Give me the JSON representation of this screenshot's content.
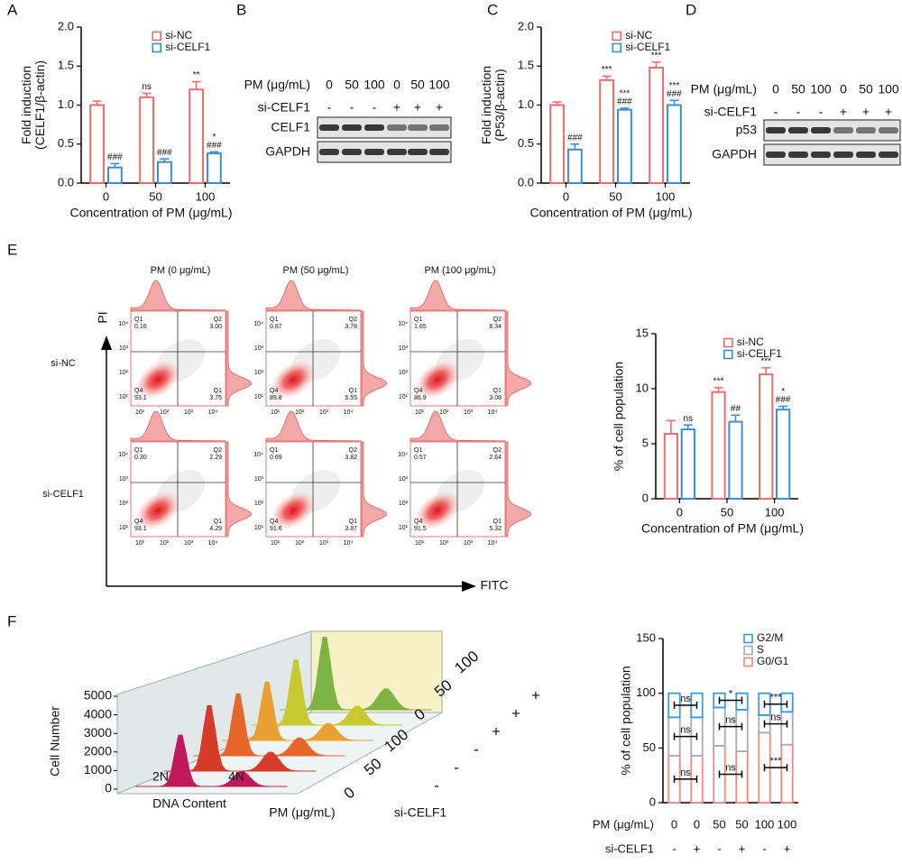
{
  "panel_labels": [
    "A",
    "B",
    "C",
    "D",
    "E",
    "F"
  ],
  "chart_data": [
    {
      "type": "bar",
      "ylabel": [
        "Fold induction",
        "(CELF1/β-actin)"
      ],
      "xlabel": "Concentration of PM (μg/mL)",
      "categories": [
        "0",
        "50",
        "100"
      ],
      "ylim": [
        0,
        2
      ],
      "yticks": [
        {
          "value": 0,
          "label": "0.0"
        },
        {
          "value": 0.5,
          "label": "0.5"
        },
        {
          "value": 1,
          "label": "1.0"
        },
        {
          "value": 1.5,
          "label": "1.5"
        },
        {
          "value": 2,
          "label": "2.0"
        }
      ],
      "series": [
        {
          "name": "si-NC",
          "color": "#ef6c6c",
          "values": [
            1.0,
            1.1,
            1.2
          ],
          "errors": [
            0.05,
            0.05,
            0.1
          ],
          "annotations": [
            null,
            [
              "ns"
            ],
            [
              "**"
            ]
          ]
        },
        {
          "name": "si-CELF1",
          "color": "#3b8fd6",
          "values": [
            0.2,
            0.27,
            0.38
          ],
          "errors": [
            0.05,
            0.04,
            0.02
          ],
          "annotations": [
            [
              "###"
            ],
            [
              "###"
            ],
            [
              "*",
              "###"
            ]
          ]
        }
      ]
    },
    {
      "type": "bar",
      "ylabel": [
        "Fold induction",
        "(P53/β-actin)"
      ],
      "xlabel": "Concentration of PM (μg/mL)",
      "categories": [
        "0",
        "50",
        "100"
      ],
      "ylim": [
        0,
        2
      ],
      "yticks": [
        {
          "value": 0,
          "label": "0.0"
        },
        {
          "value": 0.5,
          "label": "0.5"
        },
        {
          "value": 1,
          "label": "1.0"
        },
        {
          "value": 1.5,
          "label": "1.5"
        },
        {
          "value": 2,
          "label": "2.0"
        }
      ],
      "series": [
        {
          "name": "si-NC",
          "color": "#ef6c6c",
          "values": [
            1.0,
            1.32,
            1.48
          ],
          "errors": [
            0.04,
            0.05,
            0.07
          ],
          "annotations": [
            null,
            [
              "***"
            ],
            [
              "***"
            ]
          ]
        },
        {
          "name": "si-CELF1",
          "color": "#3b8fd6",
          "values": [
            0.43,
            0.94,
            1.0
          ],
          "errors": [
            0.07,
            0.02,
            0.06
          ],
          "annotations": [
            [
              "###"
            ],
            [
              "***",
              "###"
            ],
            [
              "***",
              "###"
            ]
          ]
        }
      ]
    },
    {
      "type": "bar",
      "ylabel": [
        "% of cell population"
      ],
      "xlabel": "Concentration of PM (μg/mL)",
      "categories": [
        "0",
        "50",
        "100"
      ],
      "ylim": [
        0,
        15
      ],
      "yticks": [
        0,
        5,
        10,
        15
      ],
      "series": [
        {
          "name": "si-NC",
          "color": "#ef6c6c",
          "values": [
            5.9,
            9.7,
            11.3
          ],
          "errors": [
            1.2,
            0.4,
            0.6
          ],
          "annotations": [
            null,
            [
              "***"
            ],
            [
              "***"
            ]
          ]
        },
        {
          "name": "si-CELF1",
          "color": "#3b8fd6",
          "values": [
            6.3,
            7.0,
            8.1
          ],
          "errors": [
            0.4,
            0.6,
            0.3
          ],
          "annotations": [
            [
              "ns"
            ],
            [
              "##"
            ],
            [
              "*",
              "###"
            ]
          ]
        }
      ]
    },
    {
      "type": "stacked_bar",
      "ylabel": [
        "% of cell population"
      ],
      "ylim": [
        0,
        150
      ],
      "yticks": [
        0,
        50,
        100,
        150
      ],
      "row_labels": [
        "PM (μg/mL)",
        "si-CELF1"
      ],
      "categories": [
        "0",
        "0",
        "50",
        "50",
        "100",
        "100"
      ],
      "si_celf1": [
        "-",
        "+",
        "-",
        "+",
        "-",
        "+"
      ],
      "series": [
        {
          "name": "G0/G1",
          "color": "#ef8a80",
          "values": [
            43,
            43,
            52,
            47,
            64,
            53
          ],
          "pair_annotations": [
            "ns",
            "ns",
            "***"
          ]
        },
        {
          "name": "S",
          "color": "#a9a9b8",
          "values": [
            35,
            35,
            35,
            38,
            16,
            30
          ],
          "pair_annotations": [
            "ns",
            "ns",
            "ns"
          ]
        },
        {
          "name": "G2/M",
          "color": "#3a9ad9",
          "values": [
            22,
            22,
            13,
            15,
            20,
            17
          ],
          "pair_annotations": [
            "ns",
            "*",
            "***"
          ]
        }
      ]
    },
    {
      "type": "ridge3d",
      "ylabel": "Cell Number",
      "ylim": [
        0,
        5000
      ],
      "yticks": [
        0,
        1000,
        2000,
        3000,
        4000,
        5000
      ],
      "xlabel": "DNA Content",
      "x_categories": [
        "2N",
        "4N"
      ],
      "depth_labels": [
        "PM (μg/mL)",
        "si-CELF1"
      ],
      "pm": [
        "0",
        "50",
        "100",
        "0",
        "50",
        "100"
      ],
      "si_celf1": [
        "-",
        "-",
        "-",
        "+",
        "+",
        "+"
      ],
      "peaks": [
        2900,
        3700,
        3500,
        3300,
        3700,
        4100
      ],
      "colors": [
        "#c2185b",
        "#d83a2a",
        "#e8652a",
        "#e8a030",
        "#c8c830",
        "#7cb342"
      ]
    }
  ],
  "blots": [
    {
      "row_labels": [
        "PM (μg/mL)",
        "si-CELF1"
      ],
      "pm": [
        "0",
        "50",
        "100",
        "0",
        "50",
        "100"
      ],
      "si_celf1": [
        "-",
        "-",
        "-",
        "+",
        "+",
        "+"
      ],
      "proteins": [
        "CELF1",
        "GAPDH"
      ]
    },
    {
      "row_labels": [
        "PM (μg/mL)",
        "si-CELF1"
      ],
      "pm": [
        "0",
        "50",
        "100",
        "0",
        "50",
        "100"
      ],
      "si_celf1": [
        "-",
        "-",
        "-",
        "+",
        "+",
        "+"
      ],
      "proteins": [
        "p53",
        "GAPDH"
      ]
    }
  ],
  "flow": {
    "titles": [
      "PM (0 μg/mL)",
      "PM (50 μg/mL)",
      "PM (100 μg/mL)"
    ],
    "rows": [
      "si-NC",
      "si-CELF1"
    ],
    "y_axis": "PI",
    "x_axis": "FITC",
    "axis_ticks": [
      "10¹",
      "10²",
      "10³",
      "10⁴"
    ],
    "quadrant_names": [
      "Q1",
      "Q2",
      "Q4",
      "Q1"
    ],
    "plots": [
      [
        [
          "0.16",
          "3.00",
          "93.1",
          "3.75"
        ],
        [
          "0.87",
          "3.78",
          "89.8",
          "5.55"
        ],
        [
          "1.65",
          "8.34",
          "86.9",
          "3.08"
        ]
      ],
      [
        [
          "0.30",
          "2.29",
          "93.1",
          "4.29"
        ],
        [
          "0.69",
          "3.82",
          "91.6",
          "3.87"
        ],
        [
          "0.57",
          "2.64",
          "91.5",
          "5.32"
        ]
      ]
    ]
  }
}
